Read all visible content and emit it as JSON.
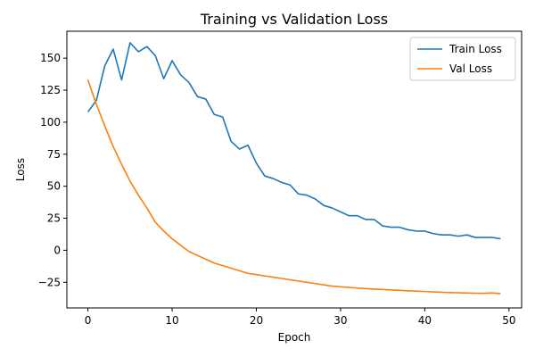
{
  "chart_data": {
    "type": "line",
    "title": "Training vs Validation Loss",
    "xlabel": "Epoch",
    "ylabel": "Loss",
    "xlim": [
      -2.5,
      51.5
    ],
    "ylim": [
      -45,
      171
    ],
    "xticks": [
      0,
      10,
      20,
      30,
      40,
      50
    ],
    "yticks": [
      -25,
      0,
      25,
      50,
      75,
      100,
      125,
      150
    ],
    "grid": false,
    "legend_position": "top-right",
    "x": [
      0,
      1,
      2,
      3,
      4,
      5,
      6,
      7,
      8,
      9,
      10,
      11,
      12,
      13,
      14,
      15,
      16,
      17,
      18,
      19,
      20,
      21,
      22,
      23,
      24,
      25,
      26,
      27,
      28,
      29,
      30,
      31,
      32,
      33,
      34,
      35,
      36,
      37,
      38,
      39,
      40,
      41,
      42,
      43,
      44,
      45,
      46,
      47,
      48,
      49
    ],
    "series": [
      {
        "name": "Train Loss",
        "color": "#1f77b4",
        "values": [
          108,
          117,
          144,
          157,
          133,
          162,
          155,
          159,
          152,
          134,
          148,
          137,
          131,
          120,
          118,
          106,
          104,
          85,
          79,
          82,
          68,
          58,
          56,
          53,
          51,
          44,
          43,
          40,
          35,
          33,
          30,
          27,
          27,
          24,
          24,
          19,
          18,
          18,
          16,
          15,
          15,
          13,
          12,
          12,
          11,
          12,
          10,
          10,
          10,
          9
        ]
      },
      {
        "name": "Val Loss",
        "color": "#ff7f0e",
        "values": [
          133,
          114,
          97,
          81,
          67,
          54,
          43,
          33,
          22,
          15,
          9,
          4,
          -1,
          -4,
          -7,
          -10,
          -12,
          -14,
          -16,
          -18,
          -19,
          -20,
          -21,
          -22,
          -23,
          -24,
          -25,
          -26,
          -27,
          -28,
          -28.5,
          -29,
          -29.5,
          -30,
          -30.3,
          -30.6,
          -31,
          -31.3,
          -31.6,
          -31.9,
          -32.2,
          -32.5,
          -32.8,
          -33,
          -33.2,
          -33.4,
          -33.5,
          -33.6,
          -33.3,
          -34
        ]
      }
    ]
  }
}
